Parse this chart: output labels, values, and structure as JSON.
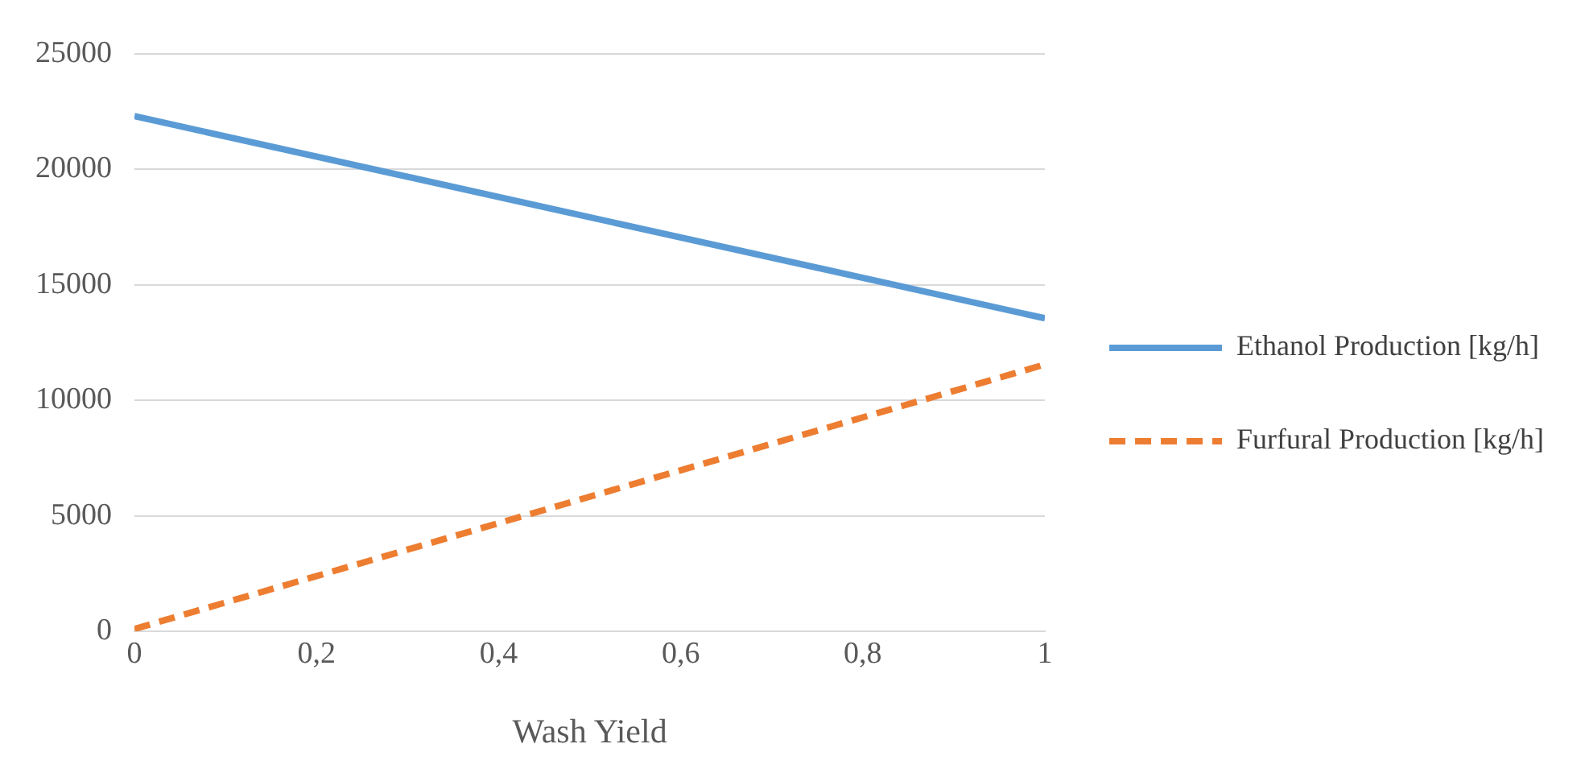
{
  "chart_data": {
    "type": "line",
    "xlabel": "Wash Yield",
    "x": [
      0,
      1
    ],
    "series": [
      {
        "name": "Ethanol Production [kg/h]",
        "color": "#5b9bd5",
        "values": [
          22300,
          13550
        ],
        "line_style": "solid"
      },
      {
        "name": "Furfural Production [kg/h]",
        "color": "#ed7d31",
        "values": [
          100,
          11550
        ],
        "line_style": "dashed"
      }
    ],
    "xlim": [
      0,
      1
    ],
    "xticks": [
      0,
      {
        "value": 0.2,
        "label": "0,2"
      },
      {
        "value": 0.4,
        "label": "0,4"
      },
      {
        "value": 0.6,
        "label": "0,6"
      },
      {
        "value": 0.8,
        "label": "0,8"
      },
      1
    ],
    "ylim": [
      0,
      25000
    ],
    "yticks": [
      0,
      5000,
      10000,
      15000,
      20000,
      25000
    ],
    "grid": "y",
    "legend": "right",
    "marker": "none"
  }
}
